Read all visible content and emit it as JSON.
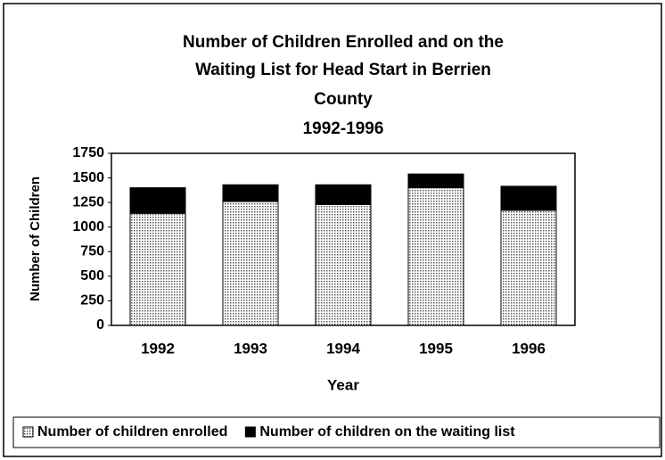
{
  "chart_data": {
    "type": "stacked_bar",
    "title": [
      "Number of Children Enrolled and on the",
      "Waiting List for Head Start in Berrien",
      "County"
    ],
    "subtitle": "1992-1996",
    "x_label": "Year",
    "y_label": "Number of Children",
    "categories": [
      "1992",
      "1993",
      "1994",
      "1995",
      "1996"
    ],
    "series": [
      {
        "name": "Number of children enrolled",
        "color": "#bdbdbd",
        "values": [
          1140,
          1260,
          1230,
          1400,
          1170
        ]
      },
      {
        "name": "Number of children on the waiting list",
        "color": "#000000",
        "values": [
          260,
          170,
          200,
          140,
          245
        ]
      }
    ],
    "ylim": [
      0,
      1750
    ],
    "yticks": [
      0,
      250,
      500,
      750,
      1000,
      1250,
      1500,
      1750
    ],
    "legend": "bottom"
  }
}
